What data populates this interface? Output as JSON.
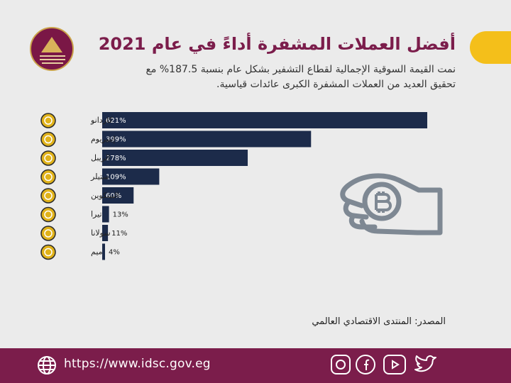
{
  "header": {
    "title": "أفضل العملات المشفرة أداءً في عام 2021",
    "subtitle": "نمت القيمة السوقية الإجمالية لقطاع التشفير بشكل عام بنسبة 187.5% مع تحقيق العديد من العملات المشفرة الكبرى عائدات قياسية."
  },
  "chart_data": {
    "type": "bar",
    "orientation": "horizontal",
    "title": "أفضل العملات المشفرة أداءً في عام 2021",
    "categories": [
      "كاردانو",
      "إيثيريوم",
      "الريبل",
      "ستيلر",
      "البيتكوين",
      "تيرا",
      "سولانا",
      "ميم"
    ],
    "values": [
      621,
      399,
      278,
      109,
      60,
      13,
      11,
      4
    ],
    "value_labels": [
      "621%",
      "399%",
      "278%",
      "109%",
      "60%",
      "13%",
      "11%",
      "4%"
    ],
    "unit": "%",
    "xlim": [
      0,
      621
    ],
    "bar_color": "#1c2b4a"
  },
  "source": "المصدر: المنتدى الاقتصادي العالمي",
  "footer": {
    "url": "https://www.idsc.gov.eg"
  },
  "icons": [
    "idsc-logo-icon",
    "hand-coin-icon",
    "globe-icon",
    "instagram-icon",
    "facebook-icon",
    "youtube-icon",
    "twitter-icon"
  ]
}
